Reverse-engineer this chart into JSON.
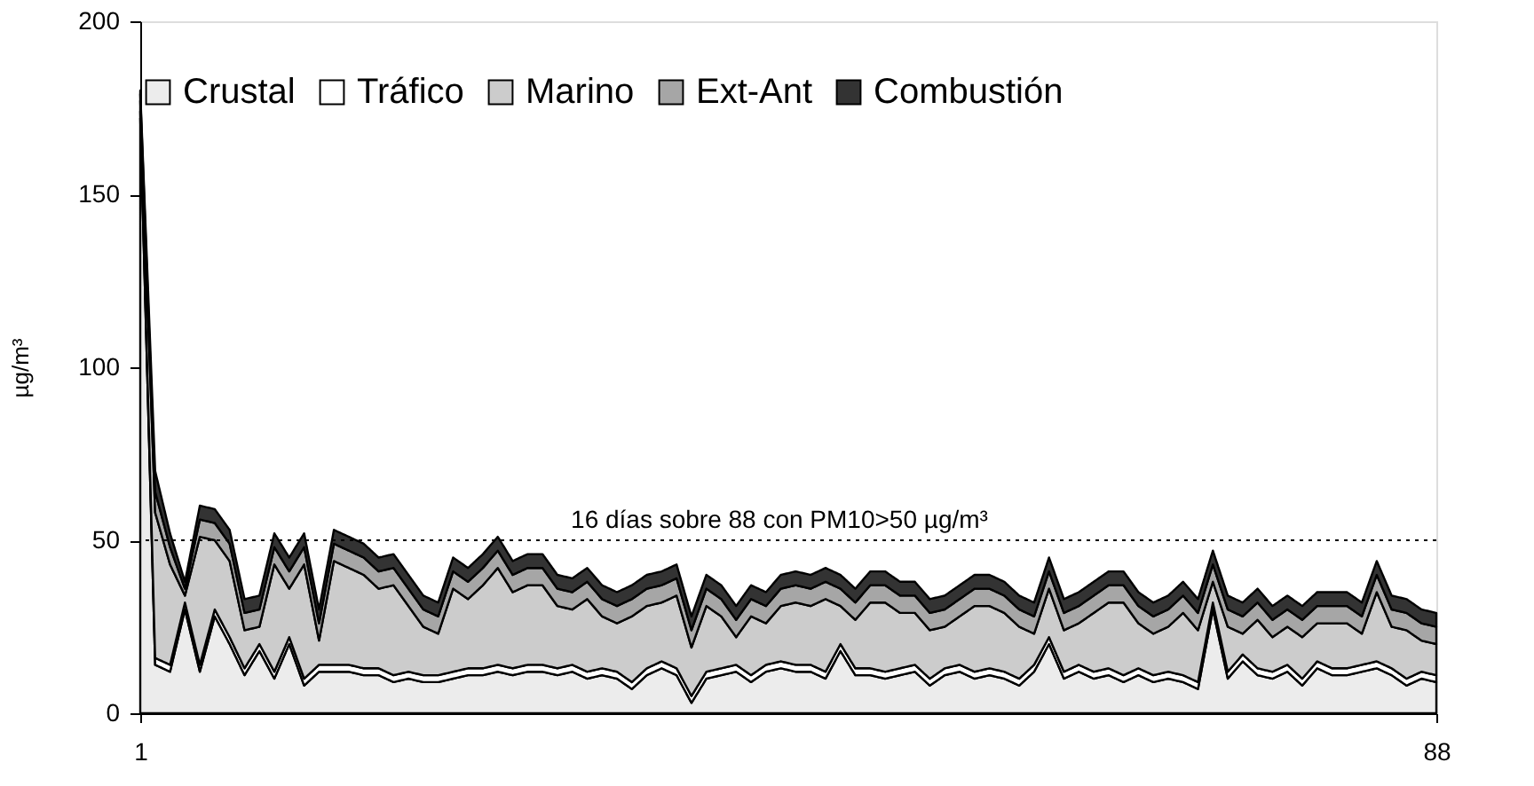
{
  "chart_data": {
    "type": "area",
    "stacked": true,
    "ylabel": "µg/m³",
    "x": [
      1,
      2,
      3,
      4,
      5,
      6,
      7,
      8,
      9,
      10,
      11,
      12,
      13,
      14,
      15,
      16,
      17,
      18,
      19,
      20,
      21,
      22,
      23,
      24,
      25,
      26,
      27,
      28,
      29,
      30,
      31,
      32,
      33,
      34,
      35,
      36,
      37,
      38,
      39,
      40,
      41,
      42,
      43,
      44,
      45,
      46,
      47,
      48,
      49,
      50,
      51,
      52,
      53,
      54,
      55,
      56,
      57,
      58,
      59,
      60,
      61,
      62,
      63,
      64,
      65,
      66,
      67,
      68,
      69,
      70,
      71,
      72,
      73,
      74,
      75,
      76,
      77,
      78,
      79,
      80,
      81,
      82,
      83,
      84,
      85,
      86,
      87,
      88
    ],
    "xlim": [
      1,
      88
    ],
    "xticks": [
      1,
      88
    ],
    "ylim": [
      0,
      200
    ],
    "yticks": [
      0,
      50,
      100,
      150,
      200
    ],
    "grid": false,
    "legend": "top",
    "line_style": "solid",
    "ref_lines": [
      {
        "axis": "y",
        "value": 50,
        "label": "16 días sobre 88 con PM10>50 µg/m³",
        "line_style": "dotted",
        "color": "#000000"
      }
    ],
    "series": [
      {
        "name": "Crustal",
        "color": "#ececec",
        "values": [
          172,
          14,
          12,
          30,
          12,
          28,
          20,
          11,
          18,
          10,
          20,
          8,
          12,
          12,
          12,
          11,
          11,
          9,
          10,
          9,
          9,
          10,
          11,
          11,
          12,
          11,
          12,
          12,
          11,
          12,
          10,
          11,
          10,
          7,
          11,
          13,
          11,
          3,
          10,
          11,
          12,
          9,
          12,
          13,
          12,
          12,
          10,
          18,
          11,
          11,
          10,
          11,
          12,
          8,
          11,
          12,
          10,
          11,
          10,
          8,
          12,
          20,
          10,
          12,
          10,
          11,
          9,
          11,
          9,
          10,
          9,
          7,
          30,
          10,
          15,
          11,
          10,
          12,
          8,
          13,
          11,
          11,
          12,
          13,
          11,
          8,
          10,
          9
        ]
      },
      {
        "name": "Tráfico",
        "color": "#ffffff",
        "values": [
          2,
          2,
          2,
          2,
          2,
          2,
          2,
          2,
          2,
          2,
          2,
          2,
          2,
          2,
          2,
          2,
          2,
          2,
          2,
          2,
          2,
          2,
          2,
          2,
          2,
          2,
          2,
          2,
          2,
          2,
          2,
          2,
          2,
          2,
          2,
          2,
          2,
          2,
          2,
          2,
          2,
          2,
          2,
          2,
          2,
          2,
          2,
          2,
          2,
          2,
          2,
          2,
          2,
          2,
          2,
          2,
          2,
          2,
          2,
          2,
          2,
          2,
          2,
          2,
          2,
          2,
          2,
          2,
          2,
          2,
          2,
          2,
          2,
          2,
          2,
          2,
          2,
          2,
          2,
          2,
          2,
          2,
          2,
          2,
          2,
          2,
          2,
          2
        ]
      },
      {
        "name": "Marino",
        "color": "#cccccc",
        "values": [
          3,
          42,
          29,
          2,
          37,
          20,
          22,
          11,
          5,
          31,
          14,
          33,
          7,
          30,
          28,
          27,
          23,
          26,
          19,
          14,
          12,
          24,
          20,
          24,
          28,
          22,
          23,
          23,
          18,
          16,
          21,
          15,
          14,
          19,
          18,
          17,
          21,
          14,
          19,
          15,
          8,
          17,
          12,
          16,
          18,
          17,
          21,
          11,
          14,
          19,
          20,
          16,
          15,
          14,
          12,
          14,
          19,
          18,
          17,
          15,
          9,
          14,
          12,
          12,
          17,
          19,
          21,
          13,
          12,
          13,
          18,
          15,
          6,
          13,
          6,
          14,
          10,
          11,
          12,
          11,
          13,
          13,
          9,
          20,
          12,
          14,
          9,
          9
        ]
      },
      {
        "name": "Ext-Ant",
        "color": "#a6a6a6",
        "values": [
          2,
          6,
          5,
          2,
          5,
          5,
          5,
          5,
          5,
          5,
          5,
          5,
          5,
          5,
          5,
          5,
          5,
          5,
          5,
          5,
          5,
          5,
          5,
          5,
          5,
          5,
          5,
          5,
          5,
          5,
          5,
          5,
          5,
          5,
          5,
          5,
          5,
          5,
          5,
          5,
          5,
          5,
          5,
          5,
          5,
          5,
          5,
          5,
          5,
          5,
          5,
          5,
          5,
          5,
          5,
          5,
          5,
          5,
          5,
          5,
          5,
          5,
          5,
          5,
          5,
          5,
          5,
          5,
          5,
          5,
          5,
          5,
          5,
          5,
          5,
          5,
          5,
          5,
          5,
          5,
          5,
          5,
          5,
          5,
          5,
          5,
          5,
          5
        ]
      },
      {
        "name": "Combustión",
        "color": "#333333",
        "values": [
          1,
          6,
          4,
          2,
          4,
          4,
          4,
          4,
          4,
          4,
          4,
          4,
          4,
          4,
          4,
          4,
          4,
          4,
          4,
          4,
          4,
          4,
          4,
          4,
          4,
          4,
          4,
          4,
          4,
          4,
          4,
          4,
          4,
          4,
          4,
          4,
          4,
          4,
          4,
          4,
          4,
          4,
          4,
          4,
          4,
          4,
          4,
          4,
          4,
          4,
          4,
          4,
          4,
          4,
          4,
          4,
          4,
          4,
          4,
          4,
          4,
          4,
          4,
          4,
          4,
          4,
          4,
          4,
          4,
          4,
          4,
          4,
          4,
          4,
          4,
          4,
          4,
          4,
          4,
          4,
          4,
          4,
          4,
          4,
          4,
          4,
          4,
          4
        ]
      }
    ]
  }
}
